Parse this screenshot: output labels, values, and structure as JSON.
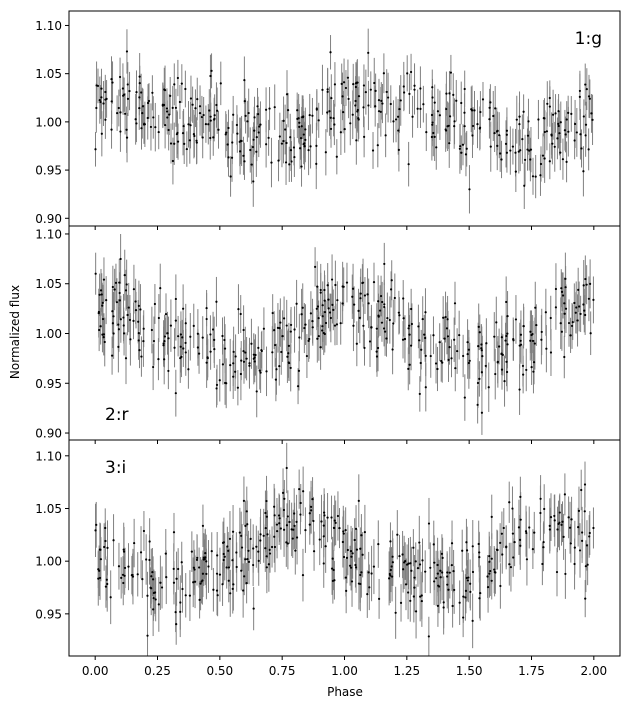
{
  "figure": {
    "ylabel": "Normalized flux",
    "xlabel": "Phase"
  },
  "chart_data": [
    {
      "type": "scatter",
      "panel_label": "1:g",
      "panel_label_position": "top-right",
      "xlabel": "",
      "ylabel": "Normalized flux",
      "xlim": [
        -0.105,
        2.105
      ],
      "ylim": [
        0.892,
        1.115
      ],
      "x_ticks": [
        0.0,
        0.25,
        0.5,
        0.75,
        1.0,
        1.25,
        1.5,
        1.75,
        2.0
      ],
      "x_tick_labels_shown": false,
      "y_ticks": [
        0.9,
        0.95,
        1.0,
        1.05,
        1.1
      ],
      "y_tick_labels": [
        "0.90",
        "0.95",
        "1.00",
        "1.05",
        "1.10"
      ],
      "phase_range": [
        0.0,
        2.0
      ],
      "n_points": 420,
      "curve_model": {
        "mean": 1.0,
        "terms": [
          {
            "harmonic": 1,
            "amplitude": 0.022,
            "phase_of_max": 0.18
          },
          {
            "harmonic": 2,
            "amplitude": 0.006,
            "phase_of_max": 0.05
          }
        ]
      },
      "point_scatter": 0.022,
      "typical_error": 0.022,
      "marker_color": "#000000",
      "errorbar_color": "#808080",
      "grid": false,
      "seed": 11
    },
    {
      "type": "scatter",
      "panel_label": "2:r",
      "panel_label_position": "bottom-left",
      "xlabel": "",
      "ylabel": "Normalized flux",
      "xlim": [
        -0.105,
        2.105
      ],
      "ylim": [
        0.893,
        1.108
      ],
      "x_ticks": [
        0.0,
        0.25,
        0.5,
        0.75,
        1.0,
        1.25,
        1.5,
        1.75,
        2.0
      ],
      "x_tick_labels_shown": false,
      "y_ticks": [
        0.9,
        0.95,
        1.0,
        1.05,
        1.1
      ],
      "y_tick_labels": [
        "0.90",
        "0.95",
        "1.00",
        "1.05",
        "1.10"
      ],
      "phase_range": [
        0.0,
        2.0
      ],
      "n_points": 420,
      "curve_model": {
        "mean": 1.0,
        "terms": [
          {
            "harmonic": 1,
            "amplitude": 0.025,
            "phase_of_max": 0.03
          },
          {
            "harmonic": 2,
            "amplitude": 0.006,
            "phase_of_max": 0.45
          }
        ]
      },
      "point_scatter": 0.02,
      "typical_error": 0.022,
      "marker_color": "#000000",
      "errorbar_color": "#808080",
      "grid": false,
      "seed": 23
    },
    {
      "type": "scatter",
      "panel_label": "3:i",
      "panel_label_position": "top-left",
      "xlabel": "Phase",
      "ylabel": "Normalized flux",
      "xlim": [
        -0.105,
        2.105
      ],
      "ylim": [
        0.91,
        1.115
      ],
      "x_ticks": [
        0.0,
        0.25,
        0.5,
        0.75,
        1.0,
        1.25,
        1.5,
        1.75,
        2.0
      ],
      "x_tick_labels_shown": true,
      "x_tick_labels": [
        "0.00",
        "0.25",
        "0.50",
        "0.75",
        "1.00",
        "1.25",
        "1.50",
        "1.75",
        "2.00"
      ],
      "y_ticks": [
        0.95,
        1.0,
        1.05,
        1.1
      ],
      "y_tick_labels": [
        "0.95",
        "1.00",
        "1.05",
        "1.10"
      ],
      "phase_range": [
        0.0,
        2.0
      ],
      "n_points": 420,
      "curve_model": {
        "mean": 1.005,
        "terms": [
          {
            "harmonic": 1,
            "amplitude": 0.025,
            "phase_of_max": 0.82
          },
          {
            "harmonic": 2,
            "amplitude": 0.005,
            "phase_of_max": 0.3
          }
        ]
      },
      "point_scatter": 0.02,
      "typical_error": 0.022,
      "marker_color": "#000000",
      "errorbar_color": "#808080",
      "grid": false,
      "seed": 37
    }
  ]
}
